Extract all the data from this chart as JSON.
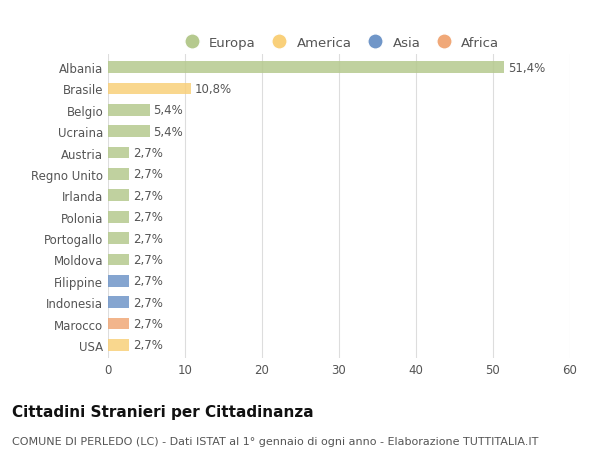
{
  "categories": [
    "Albania",
    "Brasile",
    "Belgio",
    "Ucraina",
    "Austria",
    "Regno Unito",
    "Irlanda",
    "Polonia",
    "Portogallo",
    "Moldova",
    "Filippine",
    "Indonesia",
    "Marocco",
    "USA"
  ],
  "values": [
    51.4,
    10.8,
    5.4,
    5.4,
    2.7,
    2.7,
    2.7,
    2.7,
    2.7,
    2.7,
    2.7,
    2.7,
    2.7,
    2.7
  ],
  "labels": [
    "51,4%",
    "10,8%",
    "5,4%",
    "5,4%",
    "2,7%",
    "2,7%",
    "2,7%",
    "2,7%",
    "2,7%",
    "2,7%",
    "2,7%",
    "2,7%",
    "2,7%",
    "2,7%"
  ],
  "colors": [
    "#b5c98e",
    "#f9d07a",
    "#b5c98e",
    "#b5c98e",
    "#b5c98e",
    "#b5c98e",
    "#b5c98e",
    "#b5c98e",
    "#b5c98e",
    "#b5c98e",
    "#7096c8",
    "#7096c8",
    "#f0a878",
    "#f9d07a"
  ],
  "legend_labels": [
    "Europa",
    "America",
    "Asia",
    "Africa"
  ],
  "legend_colors": [
    "#b5c98e",
    "#f9d07a",
    "#7096c8",
    "#f0a878"
  ],
  "title": "Cittadini Stranieri per Cittadinanza",
  "subtitle": "COMUNE DI PERLEDO (LC) - Dati ISTAT al 1° gennaio di ogni anno - Elaborazione TUTTITALIA.IT",
  "xlim": [
    0,
    60
  ],
  "xticks": [
    0,
    10,
    20,
    30,
    40,
    50,
    60
  ],
  "background_color": "#ffffff",
  "grid_color": "#dddddd",
  "bar_height": 0.55,
  "title_fontsize": 11,
  "subtitle_fontsize": 8,
  "label_fontsize": 8.5,
  "tick_fontsize": 8.5,
  "legend_fontsize": 9.5
}
